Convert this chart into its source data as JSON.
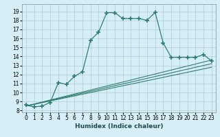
{
  "xlabel": "Humidex (Indice chaleur)",
  "bg_color": "#d6eef5",
  "grid_color": "#b8d0d8",
  "line_color": "#2e7d6e",
  "xlim": [
    -0.5,
    23.5
  ],
  "ylim": [
    7.8,
    19.8
  ],
  "xticks": [
    0,
    1,
    2,
    3,
    4,
    5,
    6,
    7,
    8,
    9,
    10,
    11,
    12,
    13,
    14,
    15,
    16,
    17,
    18,
    19,
    20,
    21,
    22,
    23
  ],
  "yticks": [
    8,
    9,
    10,
    11,
    12,
    13,
    14,
    15,
    16,
    17,
    18,
    19
  ],
  "main_series_x": [
    0,
    1,
    2,
    3,
    4,
    5,
    6,
    7,
    8,
    9,
    10,
    11,
    12,
    13,
    14,
    15,
    16,
    17,
    18,
    19,
    20,
    21,
    22,
    23
  ],
  "main_series_y": [
    8.6,
    8.4,
    8.5,
    8.9,
    11.1,
    10.9,
    11.8,
    12.3,
    15.8,
    16.7,
    18.85,
    18.85,
    18.2,
    18.2,
    18.2,
    18.0,
    18.9,
    15.5,
    13.9,
    13.9,
    13.9,
    13.9,
    14.2,
    13.5
  ],
  "line1_x": [
    0,
    23
  ],
  "line1_y": [
    8.5,
    12.8
  ],
  "line2_x": [
    0,
    23
  ],
  "line2_y": [
    8.5,
    13.2
  ],
  "line3_x": [
    0,
    23
  ],
  "line3_y": [
    8.5,
    13.6
  ],
  "tick_fontsize": 5.5,
  "xlabel_fontsize": 6.5
}
